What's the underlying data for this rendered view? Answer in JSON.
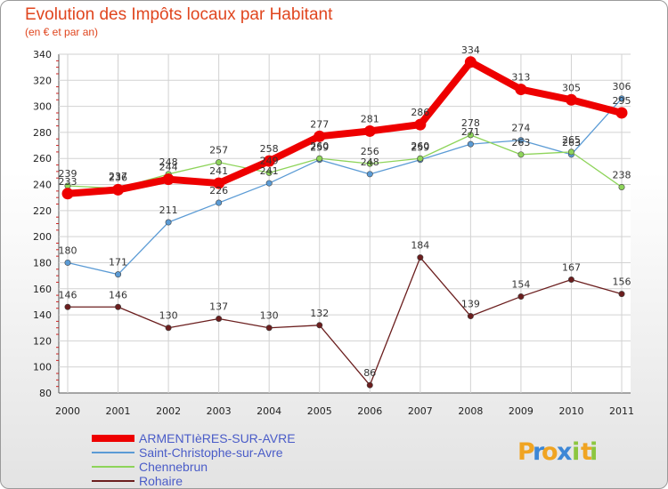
{
  "chart_data": {
    "type": "line",
    "title": "Evolution des Impôts locaux par Habitant",
    "subtitle": "(en € et par an)",
    "xlabel": "",
    "ylabel": "",
    "x": [
      "2000",
      "2001",
      "2002",
      "2003",
      "2004",
      "2005",
      "2006",
      "2007",
      "2008",
      "2009",
      "2010",
      "2011"
    ],
    "ylim": [
      80,
      340
    ],
    "yticks": [
      "80",
      "100",
      "120",
      "140",
      "160",
      "180",
      "200",
      "220",
      "240",
      "260",
      "280",
      "300",
      "320",
      "340"
    ],
    "grid": true,
    "legend_position": "bottom-left",
    "series": [
      {
        "name": "ARMENTIèRES-SUR-AVRE",
        "color": "#ee0000",
        "values": [
          233,
          236,
          244,
          241,
          258,
          277,
          281,
          286,
          334,
          313,
          305,
          295
        ],
        "labels": [
          "233",
          "236",
          "244",
          "241",
          "258",
          "277",
          "281",
          "286",
          "334",
          "313",
          "305",
          "295"
        ]
      },
      {
        "name": "Saint-Christophe-sur-Avre",
        "color": "#5b9bd5",
        "values": [
          180,
          171,
          211,
          226,
          241,
          259,
          248,
          259,
          271,
          274,
          263,
          306
        ],
        "labels": [
          "180",
          "171",
          "211",
          "226",
          "241",
          "259",
          "248",
          "259",
          "271",
          "274",
          "263",
          "306"
        ]
      },
      {
        "name": "Chennebrun",
        "color": "#8ed45a",
        "values": [
          239,
          237,
          248,
          257,
          249,
          260,
          256,
          260,
          278,
          263,
          265,
          238
        ],
        "labels": [
          "239",
          "237",
          "248",
          "257",
          "249",
          "260",
          "256",
          "260",
          "278",
          "263",
          "265",
          "238"
        ]
      },
      {
        "name": "Rohaire",
        "color": "#6b1e1e",
        "values": [
          146,
          146,
          130,
          137,
          130,
          132,
          86,
          184,
          139,
          154,
          167,
          156
        ],
        "labels": [
          "146",
          "146",
          "130",
          "137",
          "130",
          "132",
          "86",
          "184",
          "139",
          "154",
          "167",
          "156"
        ]
      }
    ]
  },
  "logo": {
    "letters": [
      "P",
      "r",
      "o",
      "x",
      "i",
      "t",
      "i"
    ],
    "colors": [
      "#f0a422",
      "#3d87d6",
      "#f0a422",
      "#3d87d6",
      "#8cc63f",
      "#f0a422",
      "#8cc63f"
    ]
  }
}
